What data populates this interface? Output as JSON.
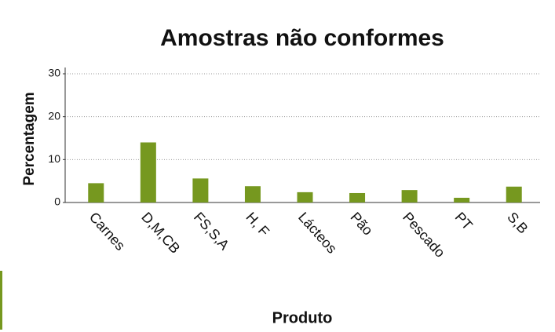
{
  "chart_data": {
    "type": "bar",
    "title": "Amostras não conformes",
    "x_label": "Produto",
    "y_label": "Percentagem",
    "categories": [
      "Carnes",
      "D,M,CB",
      "FS,S,A",
      "H, F",
      "Lácteos",
      "Pão",
      "Pescado",
      "PT",
      "S,B"
    ],
    "values": [
      4.5,
      14,
      5.6,
      3.8,
      2.4,
      2.2,
      2.9,
      1.1,
      3.7
    ],
    "color": "#76981f",
    "ylim": [
      0,
      30
    ],
    "yticks": [
      0,
      10,
      20,
      30
    ],
    "grid": true
  }
}
